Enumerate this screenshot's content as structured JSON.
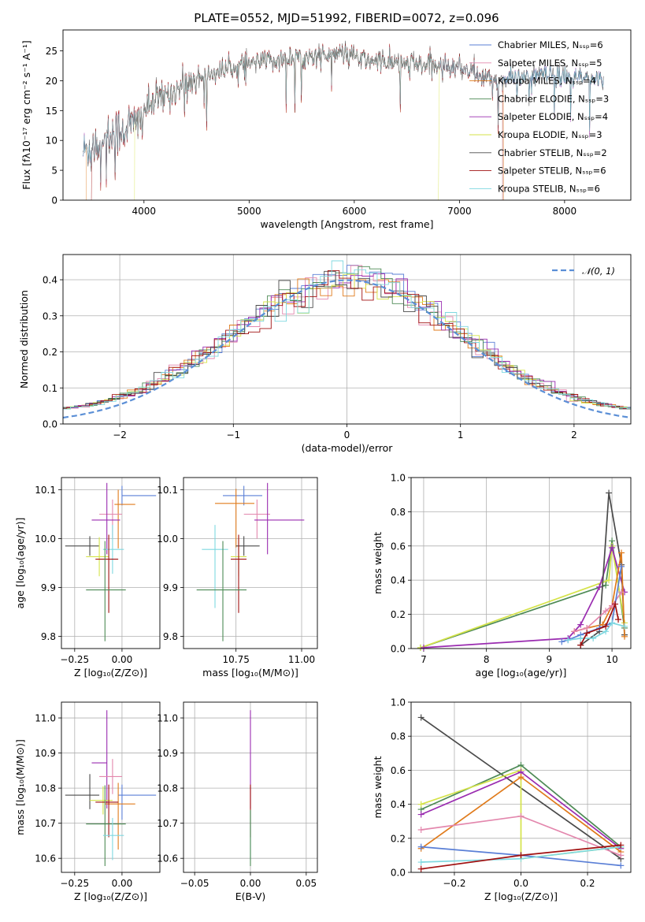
{
  "chart_data": [
    {
      "id": "spectrum",
      "type": "line",
      "title": "PLATE=0552, MJD=51992, FIBERID=0072, z=0.096",
      "xlabel": "wavelength [Angstrom, rest frame]",
      "ylabel": "Flux [fλ10⁻¹⁷ erg cm⁻² s⁻¹ A⁻¹]",
      "xlim": [
        3230,
        8630
      ],
      "ylim": [
        0,
        28.5
      ],
      "xticks": [
        4000,
        5000,
        6000,
        7000,
        8000
      ],
      "yticks": [
        0,
        5,
        10,
        15,
        20,
        25
      ],
      "grid": false,
      "legend_position": "right",
      "series": [
        {
          "name": "Chabrier MILES, Nₛₛₚ=6",
          "color": "#5a7fd6"
        },
        {
          "name": "Salpeter MILES, Nₛₛₚ=5",
          "color": "#e387ad"
        },
        {
          "name": "Kroupa MILES, Nₛₛₚ=4",
          "color": "#e07b1c"
        },
        {
          "name": "Chabrier ELODIE, Nₛₛₚ=3",
          "color": "#4d8a55"
        },
        {
          "name": "Salpeter ELODIE, Nₛₛₚ=4",
          "color": "#9a2cb0"
        },
        {
          "name": "Kroupa ELODIE, Nₛₛₚ=3",
          "color": "#d5e34a"
        },
        {
          "name": "Chabrier STELIB, Nₛₛₚ=2",
          "color": "#4a4a4a"
        },
        {
          "name": "Salpeter STELIB, Nₛₛₚ=6",
          "color": "#a01010"
        },
        {
          "name": "Kroupa STELIB, Nₛₛₚ=6",
          "color": "#7fd8e0"
        }
      ],
      "continuum": {
        "x": [
          3420,
          3600,
          3800,
          3950,
          4000,
          4150,
          4300,
          4500,
          4700,
          4900,
          5100,
          5300,
          5500,
          5700,
          5900,
          6100,
          6300,
          6500,
          6700,
          6900,
          7100,
          7200,
          7400,
          7600,
          7800,
          8000,
          8200,
          8370
        ],
        "y": [
          8,
          10,
          12,
          13,
          15,
          17,
          18.5,
          20.5,
          21.5,
          22.5,
          23,
          23.5,
          24,
          24.2,
          24.5,
          23.5,
          23,
          22.8,
          22.6,
          22.3,
          22,
          20.5,
          20,
          20.5,
          21,
          20.5,
          20.3,
          20
        ]
      }
    },
    {
      "id": "residuals",
      "type": "histogram",
      "xlabel": "(data-model)/error",
      "ylabel": "Normed distribution",
      "xlim": [
        -2.5,
        2.5
      ],
      "ylim": [
        0,
        0.47
      ],
      "xticks": [
        -2,
        -1,
        0,
        1,
        2
      ],
      "yticks": [
        0.0,
        0.1,
        0.2,
        0.3,
        0.4
      ],
      "grid": true,
      "legend_position": "top-right",
      "legend": "𝒩(0, 1)",
      "gaussian": {
        "mean": 0,
        "sigma": 1,
        "color": "#5b8fd6"
      },
      "bin_width": 0.1
    },
    {
      "id": "age-vs-Z",
      "type": "errorbar",
      "xlabel": "Z [log₁₀(Z/Z⊙)]",
      "ylabel": "age  [log₁₀(age/yr)]",
      "xlim": [
        -0.32,
        0.2
      ],
      "ylim": [
        9.775,
        10.125
      ],
      "xticks": [
        -0.25,
        0.0
      ],
      "yticks": [
        9.8,
        9.9,
        10.0,
        10.1
      ],
      "grid": true,
      "points": [
        {
          "color": "#5a7fd6",
          "x": 0.0,
          "y": 10.088,
          "xerr": [
            0.0,
            0.18
          ],
          "yerr": [
            0.02,
            0.02
          ]
        },
        {
          "color": "#e07b1c",
          "x": -0.02,
          "y": 10.07,
          "xerr": [
            0.02,
            0.09
          ],
          "yerr": [
            0.09,
            0.03
          ]
        },
        {
          "color": "#e387ad",
          "x": -0.05,
          "y": 10.05,
          "xerr": [
            0.07,
            0.05
          ],
          "yerr": [
            0.05,
            0.03
          ]
        },
        {
          "color": "#9a2cb0",
          "x": -0.08,
          "y": 10.038,
          "xerr": [
            0.08,
            0.07
          ],
          "yerr": [
            0.07,
            0.076
          ]
        },
        {
          "color": "#4a4a4a",
          "x": -0.17,
          "y": 9.985,
          "xerr": [
            0.13,
            0.05
          ],
          "yerr": [
            0.02,
            0.02
          ]
        },
        {
          "color": "#7fd8e0",
          "x": -0.05,
          "y": 9.978,
          "xerr": [
            0.05,
            0.06
          ],
          "yerr": [
            0.05,
            0.05
          ]
        },
        {
          "color": "#d5e34a",
          "x": -0.12,
          "y": 9.963,
          "xerr": [
            0.07,
            0.05
          ],
          "yerr": [
            0.04,
            0.04
          ]
        },
        {
          "color": "#a01010",
          "x": -0.07,
          "y": 9.958,
          "xerr": [
            0.07,
            0.05
          ],
          "yerr": [
            0.11,
            0.05
          ]
        },
        {
          "color": "#4d8a55",
          "x": -0.09,
          "y": 9.895,
          "xerr": [
            0.1,
            0.11
          ],
          "yerr": [
            0.105,
            0.1
          ]
        }
      ]
    },
    {
      "id": "age-vs-mass",
      "type": "errorbar",
      "xlabel": "mass [log₁₀(M/M⊙)]",
      "ylabel": "",
      "xlim": [
        10.55,
        11.06
      ],
      "ylim": [
        9.775,
        10.125
      ],
      "xticks": [
        10.75,
        11.0
      ],
      "yticks": [
        9.8,
        9.9,
        10.0,
        10.1
      ],
      "grid": true,
      "points": [
        {
          "color": "#5a7fd6",
          "x": 10.78,
          "y": 10.088,
          "xerr": [
            0.08,
            0.07
          ],
          "yerr": [
            0.02,
            0.02
          ]
        },
        {
          "color": "#e07b1c",
          "x": 10.75,
          "y": 10.072,
          "xerr": [
            0.08,
            0.07
          ],
          "yerr": [
            0.09,
            0.03
          ]
        },
        {
          "color": "#e387ad",
          "x": 10.83,
          "y": 10.05,
          "xerr": [
            0.05,
            0.05
          ],
          "yerr": [
            0.05,
            0.03
          ]
        },
        {
          "color": "#9a2cb0",
          "x": 10.87,
          "y": 10.038,
          "xerr": [
            0.05,
            0.14
          ],
          "yerr": [
            0.07,
            0.076
          ]
        },
        {
          "color": "#4a4a4a",
          "x": 10.78,
          "y": 9.985,
          "xerr": [
            0.03,
            0.06
          ],
          "yerr": [
            0.02,
            0.02
          ]
        },
        {
          "color": "#7fd8e0",
          "x": 10.67,
          "y": 9.978,
          "xerr": [
            0.05,
            0.05
          ],
          "yerr": [
            0.12,
            0.05
          ]
        },
        {
          "color": "#d5e34a",
          "x": 10.76,
          "y": 9.963,
          "xerr": [
            0.03,
            0.03
          ],
          "yerr": [
            0.04,
            0.04
          ]
        },
        {
          "color": "#a01010",
          "x": 10.76,
          "y": 9.958,
          "xerr": [
            0.03,
            0.03
          ],
          "yerr": [
            0.11,
            0.05
          ]
        },
        {
          "color": "#4d8a55",
          "x": 10.7,
          "y": 9.895,
          "xerr": [
            0.1,
            0.09
          ],
          "yerr": [
            0.105,
            0.1
          ]
        }
      ]
    },
    {
      "id": "weight-vs-age",
      "type": "line",
      "xlabel": "age  [log₁₀(age/yr)]",
      "ylabel": "mass weight",
      "xlim": [
        6.8,
        10.3
      ],
      "ylim": [
        0,
        1.0
      ],
      "xticks": [
        7,
        8,
        9,
        10
      ],
      "yticks": [
        0.0,
        0.2,
        0.4,
        0.6,
        0.8,
        1.0
      ],
      "grid": true,
      "series": [
        {
          "color": "#4d8a55",
          "x": [
            6.95,
            9.9,
            10.0,
            10.2
          ],
          "y": [
            0.005,
            0.37,
            0.63,
            0.12
          ]
        },
        {
          "color": "#d5e34a",
          "x": [
            6.95,
            9.95,
            10.0,
            10.2
          ],
          "y": [
            0.005,
            0.4,
            0.6,
            0.15
          ]
        },
        {
          "color": "#9a2cb0",
          "x": [
            7.0,
            9.3,
            9.5,
            9.8,
            10.0,
            10.2
          ],
          "y": [
            0.005,
            0.06,
            0.14,
            0.36,
            0.59,
            0.33
          ]
        },
        {
          "color": "#4a4a4a",
          "x": [
            9.5,
            9.8,
            9.95,
            10.15,
            10.2
          ],
          "y": [
            0.02,
            0.1,
            0.91,
            0.49,
            0.08
          ]
        },
        {
          "color": "#e07b1c",
          "x": [
            9.4,
            9.6,
            9.85,
            10.0,
            10.15,
            10.2
          ],
          "y": [
            0.1,
            0.12,
            0.14,
            0.25,
            0.56,
            0.07
          ]
        },
        {
          "color": "#e387ad",
          "x": [
            9.4,
            9.6,
            9.9,
            10.0,
            10.15
          ],
          "y": [
            0.1,
            0.12,
            0.22,
            0.25,
            0.33
          ]
        },
        {
          "color": "#5a7fd6",
          "x": [
            9.2,
            9.3,
            9.5,
            9.8,
            10.0,
            10.15
          ],
          "y": [
            0.04,
            0.05,
            0.08,
            0.12,
            0.15,
            0.48
          ]
        },
        {
          "color": "#7fd8e0",
          "x": [
            9.3,
            9.5,
            9.7,
            9.9,
            10.0,
            10.2
          ],
          "y": [
            0.05,
            0.06,
            0.06,
            0.1,
            0.15,
            0.13
          ]
        },
        {
          "color": "#a01010",
          "x": [
            9.5,
            9.6,
            9.9,
            10.05,
            10.1
          ],
          "y": [
            0.02,
            0.09,
            0.13,
            0.26,
            0.17
          ]
        }
      ]
    },
    {
      "id": "mass-vs-Z",
      "type": "errorbar",
      "xlabel": "Z [log₁₀(Z/Z⊙)]",
      "ylabel": "mass [log₁₀(M/M⊙)]",
      "xlim": [
        -0.32,
        0.2
      ],
      "ylim": [
        10.56,
        11.045
      ],
      "xticks": [
        -0.25,
        0.0
      ],
      "yticks": [
        10.6,
        10.7,
        10.8,
        10.9,
        11.0
      ],
      "grid": true,
      "points": [
        {
          "color": "#9a2cb0",
          "x": -0.08,
          "y": 10.872,
          "xerr": [
            0.08,
            0.0
          ],
          "yerr": [
            0.13,
            0.15
          ]
        },
        {
          "color": "#e387ad",
          "x": -0.05,
          "y": 10.833,
          "xerr": [
            0.07,
            0.05
          ],
          "yerr": [
            0.05,
            0.05
          ]
        },
        {
          "color": "#5a7fd6",
          "x": 0.0,
          "y": 10.78,
          "xerr": [
            0.02,
            0.18
          ],
          "yerr": [
            0.07,
            0.03
          ]
        },
        {
          "color": "#4a4a4a",
          "x": -0.17,
          "y": 10.78,
          "xerr": [
            0.13,
            0.05
          ],
          "yerr": [
            0.04,
            0.06
          ]
        },
        {
          "color": "#e07b1c",
          "x": -0.02,
          "y": 10.755,
          "xerr": [
            0.07,
            0.09
          ],
          "yerr": [
            0.13,
            0.06
          ]
        },
        {
          "color": "#d5e34a",
          "x": -0.1,
          "y": 10.765,
          "xerr": [
            0.07,
            0.05
          ],
          "yerr": [
            0.04,
            0.04
          ]
        },
        {
          "color": "#a01010",
          "x": -0.07,
          "y": 10.76,
          "xerr": [
            0.07,
            0.05
          ],
          "yerr": [
            0.1,
            0.05
          ]
        },
        {
          "color": "#4d8a55",
          "x": -0.09,
          "y": 10.698,
          "xerr": [
            0.1,
            0.11
          ],
          "yerr": [
            0.12,
            0.11
          ]
        },
        {
          "color": "#7fd8e0",
          "x": -0.05,
          "y": 10.665,
          "xerr": [
            0.05,
            0.06
          ],
          "yerr": [
            0.07,
            0.05
          ]
        }
      ]
    },
    {
      "id": "mass-vs-EBV",
      "type": "errorbar",
      "xlabel": "E(B-V)",
      "ylabel": "",
      "xlim": [
        -0.06,
        0.06
      ],
      "ylim": [
        10.56,
        11.045
      ],
      "xticks": [
        -0.05,
        0.0,
        0.05
      ],
      "yticks": [
        10.6,
        10.7,
        10.8,
        10.9,
        11.0
      ],
      "grid": true,
      "points": [
        {
          "color": "#9a2cb0",
          "x": 0.0,
          "y": 10.872,
          "xerr": [
            0,
            0
          ],
          "yerr": [
            0.13,
            0.15
          ]
        },
        {
          "color": "#a01010",
          "x": 0.0,
          "y": 10.76,
          "xerr": [
            0,
            0
          ],
          "yerr": [
            0.1,
            0.05
          ]
        },
        {
          "color": "#7fd8e0",
          "x": 0.0,
          "y": 10.665,
          "xerr": [
            0,
            0
          ],
          "yerr": [
            0.07,
            0.07
          ]
        },
        {
          "color": "#4d8a55",
          "x": 0.0,
          "y": 10.698,
          "xerr": [
            0,
            0
          ],
          "yerr": [
            0.12,
            0.04
          ]
        }
      ]
    },
    {
      "id": "weight-vs-Z",
      "type": "line",
      "xlabel": "Z [log₁₀(Z/Z⊙)]",
      "ylabel": "mass weight",
      "xlim": [
        -0.33,
        0.33
      ],
      "ylim": [
        0,
        1.0
      ],
      "xticks": [
        -0.2,
        0.0,
        0.2
      ],
      "yticks": [
        0.0,
        0.2,
        0.4,
        0.6,
        0.8,
        1.0
      ],
      "grid": true,
      "series": [
        {
          "color": "#4a4a4a",
          "x": [
            -0.3,
            0.3
          ],
          "y": [
            0.91,
            0.08
          ]
        },
        {
          "color": "#4d8a55",
          "x": [
            -0.3,
            0.0,
            0.3
          ],
          "y": [
            0.37,
            0.63,
            0.15
          ]
        },
        {
          "color": "#d5e34a",
          "x": [
            -0.3,
            0.0,
            0.0,
            0.3
          ],
          "y": [
            0.4,
            0.6,
            0.08,
            0.15
          ]
        },
        {
          "color": "#9a2cb0",
          "x": [
            -0.3,
            0.0,
            0.3
          ],
          "y": [
            0.34,
            0.59,
            0.14
          ]
        },
        {
          "color": "#e07b1c",
          "x": [
            -0.3,
            0.0,
            0.3
          ],
          "y": [
            0.14,
            0.56,
            0.12
          ]
        },
        {
          "color": "#e387ad",
          "x": [
            -0.3,
            0.0,
            0.3
          ],
          "y": [
            0.25,
            0.33,
            0.1
          ]
        },
        {
          "color": "#5a7fd6",
          "x": [
            -0.3,
            0.0,
            0.3
          ],
          "y": [
            0.15,
            0.1,
            0.04
          ]
        },
        {
          "color": "#7fd8e0",
          "x": [
            -0.3,
            0.0,
            0.3
          ],
          "y": [
            0.06,
            0.08,
            0.15
          ]
        },
        {
          "color": "#a01010",
          "x": [
            -0.3,
            0.0,
            0.3
          ],
          "y": [
            0.02,
            0.1,
            0.16
          ]
        }
      ]
    }
  ]
}
